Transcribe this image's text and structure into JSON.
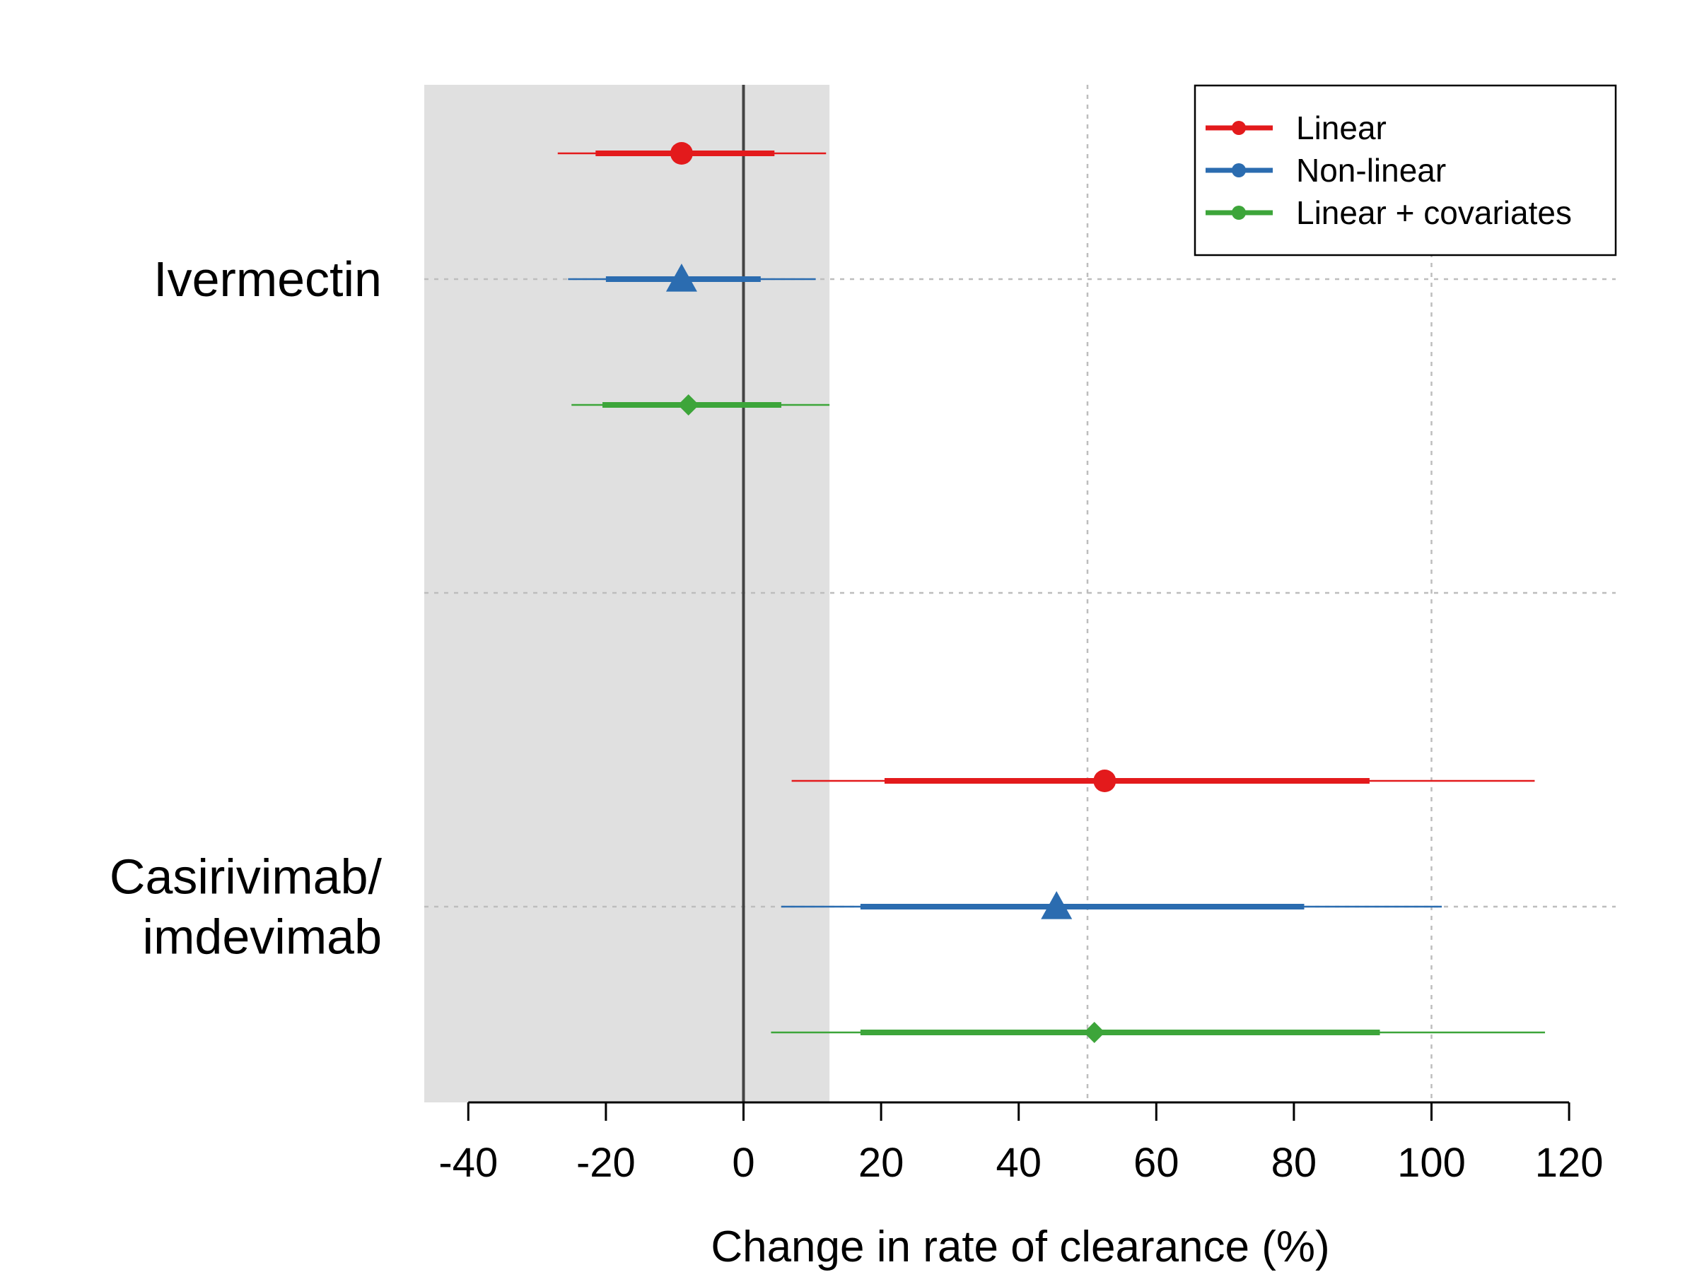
{
  "chart_data": {
    "type": "forest",
    "xlabel": "Change in rate of clearance (%)",
    "xlim": [
      -46,
      124
    ],
    "shaded_region": [
      -46,
      12.5
    ],
    "reference_line": 0,
    "vertical_gridlines": [
      50,
      100
    ],
    "x_ticks": [
      "-40",
      "-20",
      "0",
      "20",
      "40",
      "60",
      "80",
      "100",
      "120"
    ],
    "x_tick_values": [
      -40,
      -20,
      0,
      20,
      40,
      60,
      80,
      100,
      120
    ],
    "legend": {
      "position": "top-right"
    },
    "categories": [
      {
        "label_lines": [
          "Ivermectin"
        ]
      },
      {
        "label_lines": [
          "Casirivimab/",
          "imdevimab"
        ]
      }
    ],
    "series": [
      {
        "name": "Linear",
        "color": "#e31a1c",
        "marker": "circle",
        "points": [
          {
            "category": "Ivermectin",
            "estimate": -9,
            "ci_inner": [
              -21.5,
              4.5
            ],
            "ci_outer": [
              -27,
              12
            ]
          },
          {
            "category": "Casirivimab/ imdevimab",
            "estimate": 52.5,
            "ci_inner": [
              20.5,
              91
            ],
            "ci_outer": [
              7,
              115
            ]
          }
        ]
      },
      {
        "name": "Non-linear",
        "color": "#2b6cb0",
        "marker": "triangle",
        "points": [
          {
            "category": "Ivermectin",
            "estimate": -9,
            "ci_inner": [
              -20,
              2.5
            ],
            "ci_outer": [
              -25.5,
              10.5
            ]
          },
          {
            "category": "Casirivimab/ imdevimab",
            "estimate": 45.5,
            "ci_inner": [
              17,
              81.5
            ],
            "ci_outer": [
              5.5,
              101.5
            ]
          }
        ]
      },
      {
        "name": "Linear + covariates",
        "color": "#3da53a",
        "marker": "diamond",
        "points": [
          {
            "category": "Ivermectin",
            "estimate": -8,
            "ci_inner": [
              -20.5,
              5.5
            ],
            "ci_outer": [
              -25,
              12.5
            ]
          },
          {
            "category": "Casirivimab/ imdevimab",
            "estimate": 51,
            "ci_inner": [
              17,
              92.5
            ],
            "ci_outer": [
              4,
              116.5
            ]
          }
        ]
      }
    ]
  }
}
